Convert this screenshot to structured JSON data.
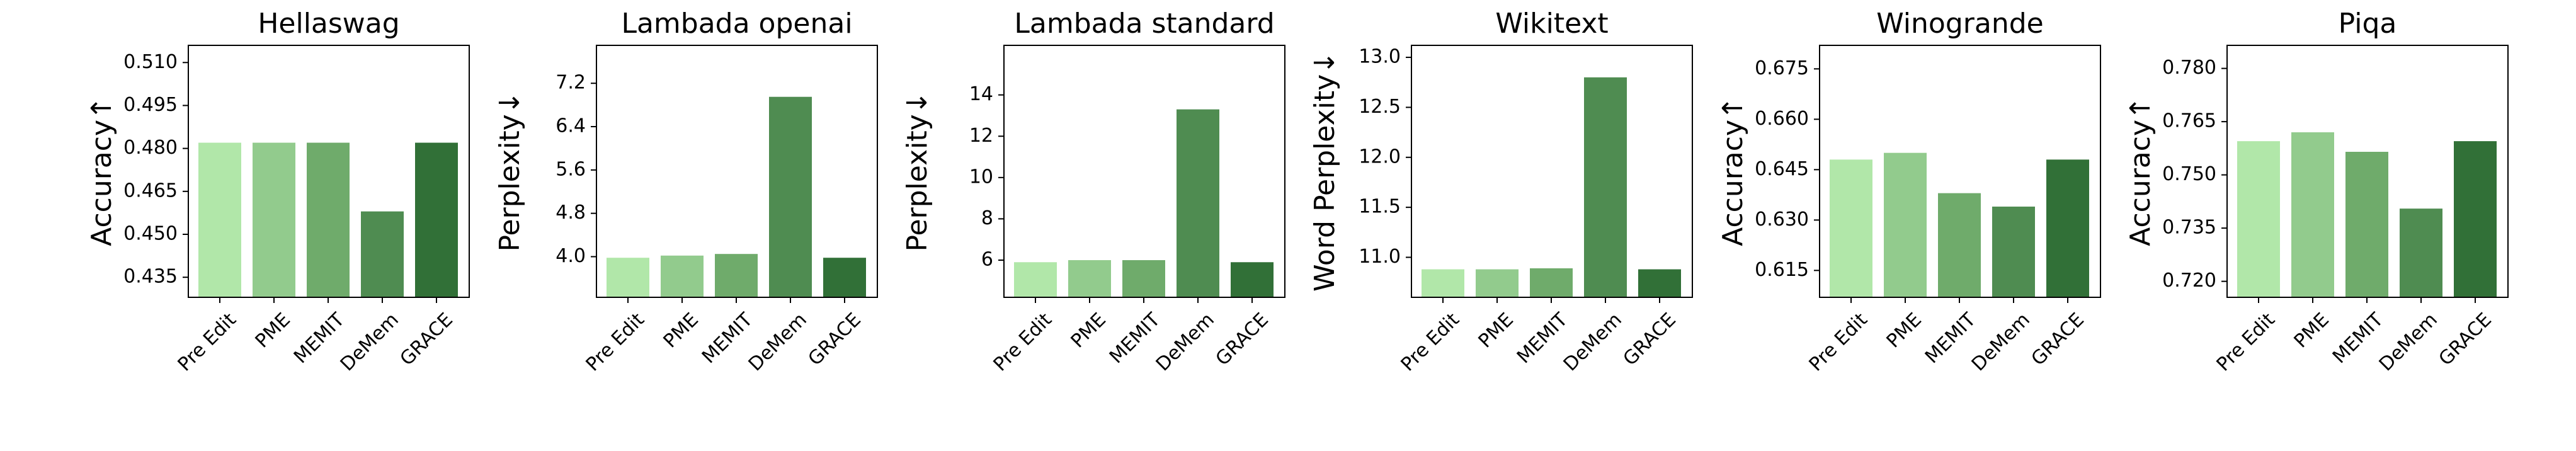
{
  "colors": {
    "Pre Edit": "#b1e7a9",
    "PME": "#92cb8d",
    "MEMIT": "#6fab6b",
    "DeMem": "#4f8c51",
    "GRACE": "#317037"
  },
  "chart_data": [
    {
      "type": "bar",
      "title": "Hellaswag",
      "ylabel": "Accuracy↑",
      "categories": [
        "Pre Edit",
        "PME",
        "MEMIT",
        "DeMem",
        "GRACE"
      ],
      "values": [
        0.482,
        0.482,
        0.482,
        0.458,
        0.482
      ],
      "ylim": [
        0.428,
        0.516
      ],
      "yticks": [
        0.435,
        0.45,
        0.465,
        0.48,
        0.495,
        0.51
      ],
      "ytick_labels": [
        "0.435",
        "0.450",
        "0.465",
        "0.480",
        "0.495",
        "0.510"
      ]
    },
    {
      "type": "bar",
      "title": "Lambada openai",
      "ylabel": "Perplexity↓",
      "categories": [
        "Pre Edit",
        "PME",
        "MEMIT",
        "DeMem",
        "GRACE"
      ],
      "values": [
        3.98,
        4.02,
        4.05,
        6.95,
        3.98
      ],
      "ylim": [
        3.25,
        7.9
      ],
      "yticks": [
        4.0,
        4.8,
        5.6,
        6.4,
        7.2
      ],
      "ytick_labels": [
        "4.0",
        "4.8",
        "5.6",
        "6.4",
        "7.2"
      ]
    },
    {
      "type": "bar",
      "title": "Lambada standard",
      "ylabel": "Perplexity↓",
      "categories": [
        "Pre Edit",
        "PME",
        "MEMIT",
        "DeMem",
        "GRACE"
      ],
      "values": [
        5.9,
        6.0,
        6.0,
        13.3,
        5.9
      ],
      "ylim": [
        4.2,
        16.4
      ],
      "yticks": [
        6,
        8,
        10,
        12,
        14
      ],
      "ytick_labels": [
        "6",
        "8",
        "10",
        "12",
        "14"
      ]
    },
    {
      "type": "bar",
      "title": "Wikitext",
      "ylabel": "Word Perplexity↓",
      "categories": [
        "Pre Edit",
        "PME",
        "MEMIT",
        "DeMem",
        "GRACE"
      ],
      "values": [
        10.88,
        10.88,
        10.89,
        12.8,
        10.88
      ],
      "ylim": [
        10.6,
        13.12
      ],
      "yticks": [
        11.0,
        11.5,
        12.0,
        12.5,
        13.0
      ],
      "ytick_labels": [
        "11.0",
        "11.5",
        "12.0",
        "12.5",
        "13.0"
      ]
    },
    {
      "type": "bar",
      "title": "Winogrande",
      "ylabel": "Accuracy↑",
      "categories": [
        "Pre Edit",
        "PME",
        "MEMIT",
        "DeMem",
        "GRACE"
      ],
      "values": [
        0.648,
        0.65,
        0.638,
        0.634,
        0.648
      ],
      "ylim": [
        0.607,
        0.682
      ],
      "yticks": [
        0.615,
        0.63,
        0.645,
        0.66,
        0.675
      ],
      "ytick_labels": [
        "0.615",
        "0.630",
        "0.645",
        "0.660",
        "0.675"
      ]
    },
    {
      "type": "bar",
      "title": "Piqa",
      "ylabel": "Accuracy↑",
      "categories": [
        "Pre Edit",
        "PME",
        "MEMIT",
        "DeMem",
        "GRACE"
      ],
      "values": [
        0.7595,
        0.762,
        0.7565,
        0.7405,
        0.7595
      ],
      "ylim": [
        0.7155,
        0.7865
      ],
      "yticks": [
        0.72,
        0.735,
        0.75,
        0.765,
        0.78
      ],
      "ytick_labels": [
        "0.720",
        "0.735",
        "0.750",
        "0.765",
        "0.780"
      ]
    }
  ]
}
